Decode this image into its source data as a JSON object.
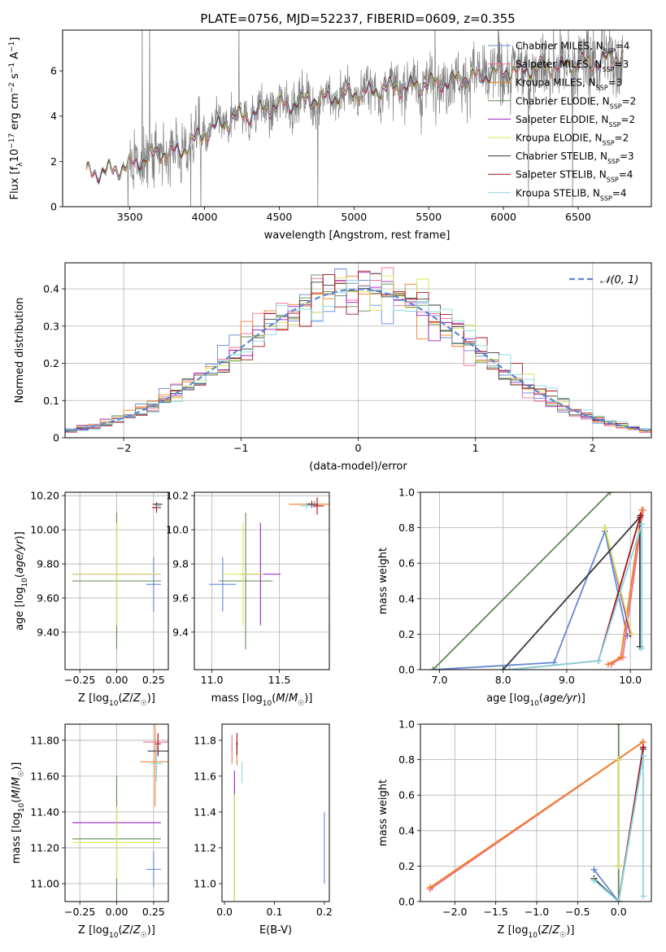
{
  "figure": {
    "title": "PLATE=0756, MJD=52237, FIBERID=0609, z=0.355",
    "model_legend": [
      {
        "name": "Chabrier MILES, N_SSP=4",
        "base": "Chabrier MILES, N",
        "sub": "SSP",
        "tail": "=4",
        "color": "#6688d6"
      },
      {
        "name": "Salpeter MILES, N_SSP=3",
        "base": "Salpeter MILES, N",
        "sub": "SSP",
        "tail": "=3",
        "color": "#ee6f91"
      },
      {
        "name": "Kroupa MILES, N_SSP=3",
        "base": "Kroupa MILES, N",
        "sub": "SSP",
        "tail": "=3",
        "color": "#f07f22"
      },
      {
        "name": "Chabrier ELODIE, N_SSP=2",
        "base": "Chabrier ELODIE, N",
        "sub": "SSP",
        "tail": "=2",
        "color": "#5d8a52"
      },
      {
        "name": "Salpeter ELODIE, N_SSP=2",
        "base": "Salpeter ELODIE, N",
        "sub": "SSP",
        "tail": "=2",
        "color": "#9b1fc0"
      },
      {
        "name": "Kroupa ELODIE, N_SSP=2",
        "base": "Kroupa ELODIE, N",
        "sub": "SSP",
        "tail": "=2",
        "color": "#d5e94f"
      },
      {
        "name": "Chabrier STELIB, N_SSP=3",
        "base": "Chabrier STELIB, N",
        "sub": "SSP",
        "tail": "=3",
        "color": "#3a3a3a"
      },
      {
        "name": "Salpeter STELIB, N_SSP=4",
        "base": "Salpeter STELIB, N",
        "sub": "SSP",
        "tail": "=4",
        "color": "#a8101c"
      },
      {
        "name": "Kroupa STELIB, N_SSP=4",
        "base": "Kroupa STELIB, N",
        "sub": "SSP",
        "tail": "=4",
        "color": "#88d8e0"
      }
    ],
    "data_color": "#7f7f7f",
    "grid_color": "#b0b0b0"
  },
  "chart_data": [
    {
      "id": "spectrum",
      "type": "line",
      "xlabel": "wavelength [Angstrom, rest frame]",
      "ylabel": "Flux [f_λ 10^-17 erg cm^-2 s^-1 A^-1]",
      "xlim": [
        3050,
        6990
      ],
      "ylim": [
        0,
        7.8
      ],
      "xticks": [
        3500,
        4000,
        4500,
        5000,
        5500,
        6000,
        6500
      ],
      "yticks": [
        0,
        2,
        4,
        6
      ],
      "grid": false,
      "legend": "top-right",
      "continuum": {
        "x": [
          3210,
          3400,
          3550,
          3700,
          3850,
          3950,
          4050,
          4200,
          4400,
          4600,
          4800,
          5000,
          5200,
          5400,
          5600,
          5800,
          6000,
          6200,
          6400,
          6600,
          6800
        ],
        "y": [
          1.5,
          1.6,
          2.0,
          2.35,
          2.5,
          3.0,
          3.45,
          3.9,
          4.3,
          4.6,
          4.8,
          5.0,
          5.2,
          5.35,
          5.5,
          5.75,
          5.95,
          6.1,
          6.25,
          6.4,
          6.6
        ]
      }
    },
    {
      "id": "residuals",
      "type": "histogram",
      "xlabel": "(data-model)/error",
      "ylabel": "Normed distribution",
      "xlim": [
        -2.5,
        2.5
      ],
      "ylim": [
        0,
        0.47
      ],
      "xticks": [
        -2,
        -1,
        0,
        1,
        2
      ],
      "yticks": [
        0.0,
        0.1,
        0.2,
        0.3,
        0.4
      ],
      "grid": true,
      "legend": "top-right",
      "reference_curve": {
        "label": "N(0,1)",
        "label_tex": "𝒩(0, 1)",
        "color": "#5b86d4",
        "style": "dashed"
      }
    },
    {
      "id": "age-vs-Z",
      "type": "scatter",
      "xlabel": "Z [log10(Z/Z☉)]",
      "ylabel": "age [log10(age/yr)]",
      "xlim": [
        -0.35,
        0.35
      ],
      "ylim": [
        9.18,
        10.22
      ],
      "xticks": [
        -0.25,
        0.0,
        0.25
      ],
      "yticks": [
        9.4,
        9.6,
        9.8,
        10.0,
        10.2
      ],
      "grid": true
    },
    {
      "id": "age-vs-mass",
      "type": "scatter",
      "xlabel": "mass [log10(M/M☉)]",
      "ylabel": "",
      "xlim": [
        10.87,
        11.87
      ],
      "ylim": [
        9.18,
        10.22
      ],
      "xticks": [
        11.0,
        11.5
      ],
      "yticks": [
        9.4,
        9.6,
        9.8,
        10.0,
        10.2
      ],
      "grid": true
    },
    {
      "id": "mass-weight-vs-age",
      "type": "line",
      "xlabel": "age [log10(age/yr)]",
      "ylabel": "mass weight",
      "xlim": [
        6.7,
        10.33
      ],
      "ylim": [
        0,
        1.0
      ],
      "xticks": [
        7,
        8,
        9,
        10
      ],
      "yticks": [
        0.0,
        0.2,
        0.4,
        0.6,
        0.8,
        1.0
      ],
      "grid": true,
      "series": [
        {
          "name": "Chabrier MILES, N_SSP=4",
          "color": "#6688d6",
          "x": [
            6.9,
            8.8,
            9.6,
            9.95
          ],
          "y": [
            0.0,
            0.04,
            0.78,
            0.19
          ]
        },
        {
          "name": "Salpeter MILES, N_SSP=3",
          "color": "#ee6f91",
          "x": [
            9.7,
            9.88,
            10.2
          ],
          "y": [
            0.03,
            0.07,
            0.9
          ]
        },
        {
          "name": "Kroupa MILES, N_SSP=3",
          "color": "#f07f22",
          "x": [
            9.65,
            9.85,
            10.18
          ],
          "y": [
            0.03,
            0.07,
            0.9
          ]
        },
        {
          "name": "Chabrier ELODIE, N_SSP=2",
          "color": "#5d8a52",
          "x": [
            6.9,
            9.68
          ],
          "y": [
            0.0,
            1.0
          ]
        },
        {
          "name": "Salpeter ELODIE, N_SSP=2",
          "color": "#9b1fc0",
          "x": [
            9.6,
            10.0
          ],
          "y": [
            0.8,
            0.2
          ]
        },
        {
          "name": "Kroupa ELODIE, N_SSP=2",
          "color": "#d5e94f",
          "x": [
            9.6,
            10.02
          ],
          "y": [
            0.8,
            0.2
          ]
        },
        {
          "name": "Chabrier STELIB, N_SSP=3",
          "color": "#3a3a3a",
          "x": [
            8.0,
            10.15,
            10.15
          ],
          "y": [
            0.0,
            0.86,
            0.13
          ]
        },
        {
          "name": "Salpeter STELIB, N_SSP=4",
          "color": "#a8101c",
          "x": [
            8.1,
            9.5,
            10.16
          ],
          "y": [
            0.0,
            0.05,
            0.87
          ]
        },
        {
          "name": "Kroupa STELIB, N_SSP=4",
          "color": "#88d8e0",
          "x": [
            8.1,
            9.5,
            10.18,
            10.18
          ],
          "y": [
            0.0,
            0.05,
            0.82,
            0.12
          ]
        }
      ]
    },
    {
      "id": "mass-vs-Z",
      "type": "scatter",
      "xlabel": "Z [log10(Z/Z☉)]",
      "ylabel": "mass [log10(M/M☉)]",
      "xlim": [
        -0.35,
        0.35
      ],
      "ylim": [
        10.9,
        11.89
      ],
      "xticks": [
        -0.25,
        0.0,
        0.25
      ],
      "yticks": [
        11.0,
        11.2,
        11.4,
        11.6,
        11.8
      ],
      "grid": true
    },
    {
      "id": "mass-vs-EBV",
      "type": "scatter",
      "xlabel": "E(B-V)",
      "ylabel": "",
      "xlim": [
        -0.005,
        0.21
      ],
      "ylim": [
        10.9,
        11.89
      ],
      "xticks": [
        0.0,
        0.1,
        0.2
      ],
      "yticks": [
        11.0,
        11.2,
        11.4,
        11.6,
        11.8
      ],
      "grid": false
    },
    {
      "id": "mass-weight-vs-Z",
      "type": "line",
      "xlabel": "Z [log10(Z/Z☉)]",
      "ylabel": "mass weight",
      "xlim": [
        -2.42,
        0.4
      ],
      "ylim": [
        0,
        1.0
      ],
      "xticks": [
        -2.0,
        -1.5,
        -1.0,
        -0.5,
        0.0
      ],
      "yticks": [
        0.0,
        0.2,
        0.4,
        0.6,
        0.8,
        1.0
      ],
      "grid": true,
      "series": [
        {
          "name": "Chabrier MILES, N_SSP=4",
          "color": "#6688d6",
          "x": [
            -0.3,
            0.0,
            0.3
          ],
          "y": [
            0.18,
            0.0,
            0.82
          ]
        },
        {
          "name": "Salpeter MILES, N_SSP=3",
          "color": "#ee6f91",
          "x": [
            -2.3,
            0.3
          ],
          "y": [
            0.07,
            0.9
          ]
        },
        {
          "name": "Kroupa MILES, N_SSP=3",
          "color": "#f07f22",
          "x": [
            -2.3,
            0.3
          ],
          "y": [
            0.08,
            0.9
          ]
        },
        {
          "name": "Chabrier ELODIE, N_SSP=2",
          "color": "#5d8a52",
          "x": [
            0.0,
            0.0
          ],
          "y": [
            0.0,
            1.0
          ]
        },
        {
          "name": "Salpeter ELODIE, N_SSP=2",
          "color": "#9b1fc0",
          "x": [
            0.0,
            0.0
          ],
          "y": [
            0.2,
            0.8
          ]
        },
        {
          "name": "Kroupa ELODIE, N_SSP=2",
          "color": "#d5e94f",
          "x": [
            0.0,
            0.0
          ],
          "y": [
            0.2,
            0.8
          ]
        },
        {
          "name": "Chabrier STELIB, N_SSP=3",
          "color": "#3a3a3a",
          "x": [
            -0.3,
            0.0,
            0.3
          ],
          "y": [
            0.13,
            0.0,
            0.86
          ]
        },
        {
          "name": "Salpeter STELIB, N_SSP=4",
          "color": "#a8101c",
          "x": [
            0.0,
            0.3
          ],
          "y": [
            0.0,
            0.87
          ]
        },
        {
          "name": "Kroupa STELIB, N_SSP=4",
          "color": "#88d8e0",
          "x": [
            -0.3,
            0.0,
            0.3,
            0.3
          ],
          "y": [
            0.12,
            0.0,
            0.82,
            0.03
          ]
        }
      ]
    }
  ]
}
